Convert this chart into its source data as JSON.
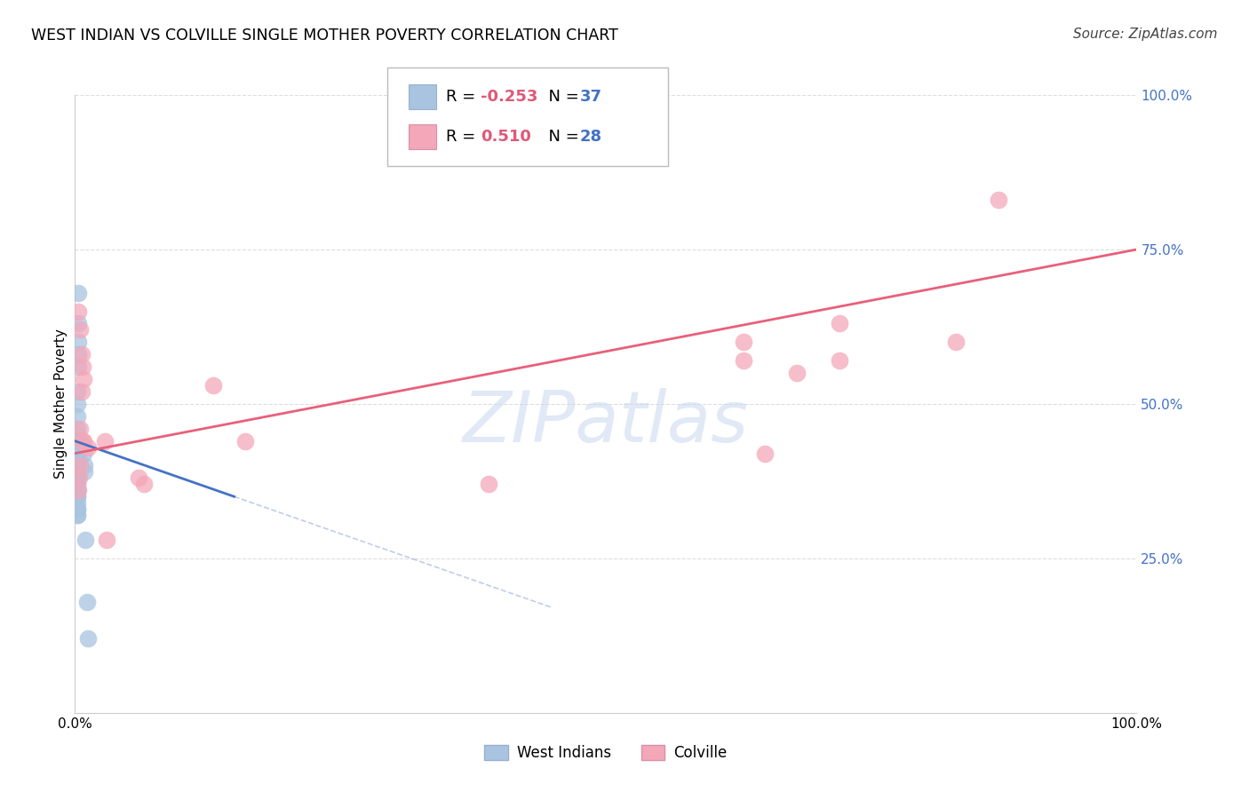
{
  "title": "WEST INDIAN VS COLVILLE SINGLE MOTHER POVERTY CORRELATION CHART",
  "source": "Source: ZipAtlas.com",
  "ylabel": "Single Mother Poverty",
  "xlim": [
    0.0,
    1.0
  ],
  "ylim": [
    0.0,
    1.0
  ],
  "ytick_positions": [
    0.25,
    0.5,
    0.75,
    1.0
  ],
  "ytick_labels": [
    "25.0%",
    "50.0%",
    "75.0%",
    "100.0%"
  ],
  "xtick_positions": [
    0.0,
    1.0
  ],
  "xtick_labels": [
    "0.0%",
    "100.0%"
  ],
  "west_indian_color": "#a8c4e0",
  "colville_color": "#f4a7b9",
  "west_indian_line_color": "#4472c4",
  "colville_line_color": "#e8607a",
  "R_west_indian": -0.253,
  "N_west_indian": 37,
  "R_colville": 0.51,
  "N_colville": 28,
  "west_indian_scatter": [
    [
      0.003,
      0.68
    ],
    [
      0.003,
      0.63
    ],
    [
      0.003,
      0.6
    ],
    [
      0.003,
      0.58
    ],
    [
      0.003,
      0.56
    ],
    [
      0.002,
      0.52
    ],
    [
      0.002,
      0.5
    ],
    [
      0.002,
      0.48
    ],
    [
      0.002,
      0.46
    ],
    [
      0.002,
      0.45
    ],
    [
      0.002,
      0.44
    ],
    [
      0.002,
      0.44
    ],
    [
      0.002,
      0.43
    ],
    [
      0.002,
      0.42
    ],
    [
      0.002,
      0.41
    ],
    [
      0.002,
      0.4
    ],
    [
      0.002,
      0.39
    ],
    [
      0.002,
      0.38
    ],
    [
      0.002,
      0.38
    ],
    [
      0.002,
      0.37
    ],
    [
      0.002,
      0.37
    ],
    [
      0.002,
      0.36
    ],
    [
      0.002,
      0.36
    ],
    [
      0.002,
      0.35
    ],
    [
      0.002,
      0.35
    ],
    [
      0.002,
      0.34
    ],
    [
      0.002,
      0.33
    ],
    [
      0.002,
      0.33
    ],
    [
      0.002,
      0.32
    ],
    [
      0.002,
      0.32
    ],
    [
      0.005,
      0.44
    ],
    [
      0.008,
      0.42
    ],
    [
      0.009,
      0.4
    ],
    [
      0.009,
      0.39
    ],
    [
      0.01,
      0.28
    ],
    [
      0.011,
      0.18
    ],
    [
      0.012,
      0.12
    ]
  ],
  "colville_scatter": [
    [
      0.003,
      0.65
    ],
    [
      0.005,
      0.62
    ],
    [
      0.006,
      0.58
    ],
    [
      0.007,
      0.56
    ],
    [
      0.008,
      0.54
    ],
    [
      0.006,
      0.52
    ],
    [
      0.005,
      0.46
    ],
    [
      0.007,
      0.44
    ],
    [
      0.008,
      0.44
    ],
    [
      0.012,
      0.43
    ],
    [
      0.005,
      0.4
    ],
    [
      0.004,
      0.38
    ],
    [
      0.003,
      0.36
    ],
    [
      0.028,
      0.44
    ],
    [
      0.03,
      0.28
    ],
    [
      0.06,
      0.38
    ],
    [
      0.065,
      0.37
    ],
    [
      0.13,
      0.53
    ],
    [
      0.16,
      0.44
    ],
    [
      0.39,
      0.37
    ],
    [
      0.63,
      0.6
    ],
    [
      0.63,
      0.57
    ],
    [
      0.65,
      0.42
    ],
    [
      0.68,
      0.55
    ],
    [
      0.72,
      0.63
    ],
    [
      0.72,
      0.57
    ],
    [
      0.83,
      0.6
    ],
    [
      0.87,
      0.83
    ]
  ],
  "background_color": "#ffffff",
  "grid_color": "#dddddd",
  "watermark": "ZIPatlas",
  "watermark_color": "#c8d8ee",
  "title_fontsize": 12.5,
  "source_fontsize": 11,
  "ylabel_fontsize": 11
}
